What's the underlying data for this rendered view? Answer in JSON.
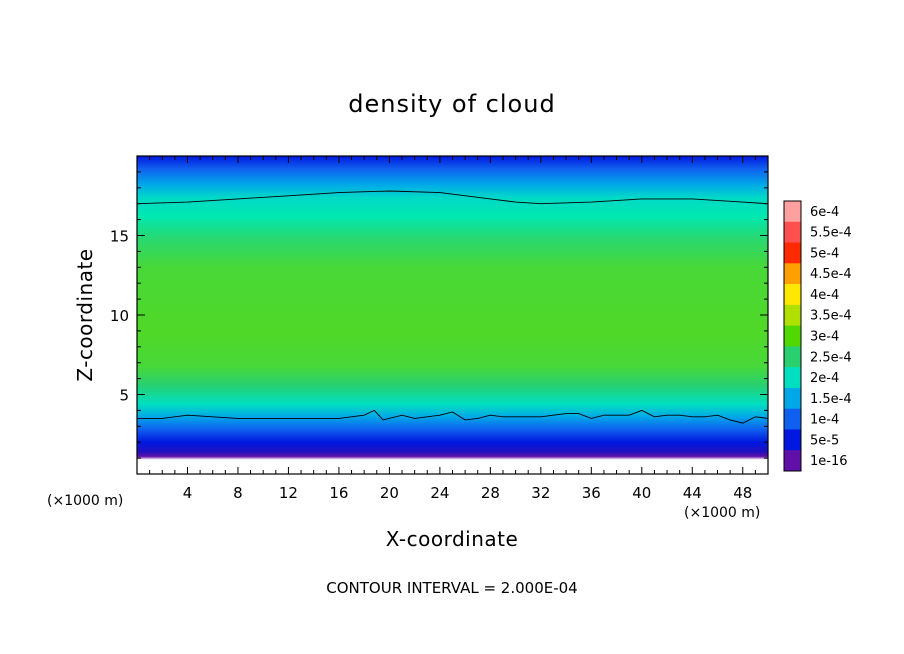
{
  "chart_data": {
    "type": "heatmap",
    "title": "density of cloud",
    "xlabel": "X-coordinate",
    "ylabel": "Z-coordinate",
    "x_unit": "(×1000 m)",
    "y_unit": "(×1000 m)",
    "xlim": [
      0,
      50
    ],
    "ylim": [
      0,
      20
    ],
    "x_ticks": [
      4,
      8,
      12,
      16,
      20,
      24,
      28,
      32,
      36,
      40,
      44,
      48
    ],
    "y_ticks": [
      5,
      10,
      15
    ],
    "contour_interval_text": "CONTOUR INTERVAL = 2.000E-04",
    "colorbar": {
      "levels": [
        "6e-4",
        "5.5e-4",
        "5e-4",
        "4.5e-4",
        "4e-4",
        "3.5e-4",
        "3e-4",
        "2.5e-4",
        "2e-4",
        "1.5e-4",
        "1e-4",
        "5e-5",
        "1e-16"
      ],
      "colors": [
        "#ffa0a0",
        "#ff5050",
        "#ff2a00",
        "#ffa000",
        "#ffe800",
        "#b0e000",
        "#50d800",
        "#28d070",
        "#00e0c0",
        "#00a8e8",
        "#1060f0",
        "#0018e0",
        "#6010a8"
      ]
    },
    "contour_lines": [
      {
        "level": "2e-4",
        "points": [
          [
            0,
            17.0
          ],
          [
            4,
            17.1
          ],
          [
            8,
            17.3
          ],
          [
            12,
            17.5
          ],
          [
            16,
            17.7
          ],
          [
            20,
            17.8
          ],
          [
            24,
            17.7
          ],
          [
            28,
            17.3
          ],
          [
            30,
            17.1
          ],
          [
            32,
            17.0
          ],
          [
            36,
            17.1
          ],
          [
            40,
            17.3
          ],
          [
            44,
            17.3
          ],
          [
            48,
            17.1
          ],
          [
            50,
            17.0
          ]
        ]
      },
      {
        "level": "2e-4",
        "points": [
          [
            0,
            3.5
          ],
          [
            2,
            3.5
          ],
          [
            4,
            3.7
          ],
          [
            6,
            3.6
          ],
          [
            8,
            3.5
          ],
          [
            10,
            3.5
          ],
          [
            12,
            3.5
          ],
          [
            14,
            3.5
          ],
          [
            16,
            3.5
          ],
          [
            17,
            3.6
          ],
          [
            18,
            3.7
          ],
          [
            18.8,
            4.0
          ],
          [
            19.5,
            3.4
          ],
          [
            21,
            3.7
          ],
          [
            22,
            3.5
          ],
          [
            24,
            3.7
          ],
          [
            25,
            3.9
          ],
          [
            26,
            3.4
          ],
          [
            27,
            3.5
          ],
          [
            28,
            3.7
          ],
          [
            29,
            3.6
          ],
          [
            30,
            3.6
          ],
          [
            32,
            3.6
          ],
          [
            34,
            3.8
          ],
          [
            35,
            3.8
          ],
          [
            36,
            3.5
          ],
          [
            37,
            3.7
          ],
          [
            38,
            3.7
          ],
          [
            39,
            3.7
          ],
          [
            40,
            4.0
          ],
          [
            41,
            3.6
          ],
          [
            42,
            3.7
          ],
          [
            43,
            3.7
          ],
          [
            44,
            3.6
          ],
          [
            45,
            3.6
          ],
          [
            46,
            3.7
          ],
          [
            47,
            3.4
          ],
          [
            48,
            3.2
          ],
          [
            49,
            3.6
          ],
          [
            50,
            3.5
          ]
        ]
      }
    ]
  }
}
